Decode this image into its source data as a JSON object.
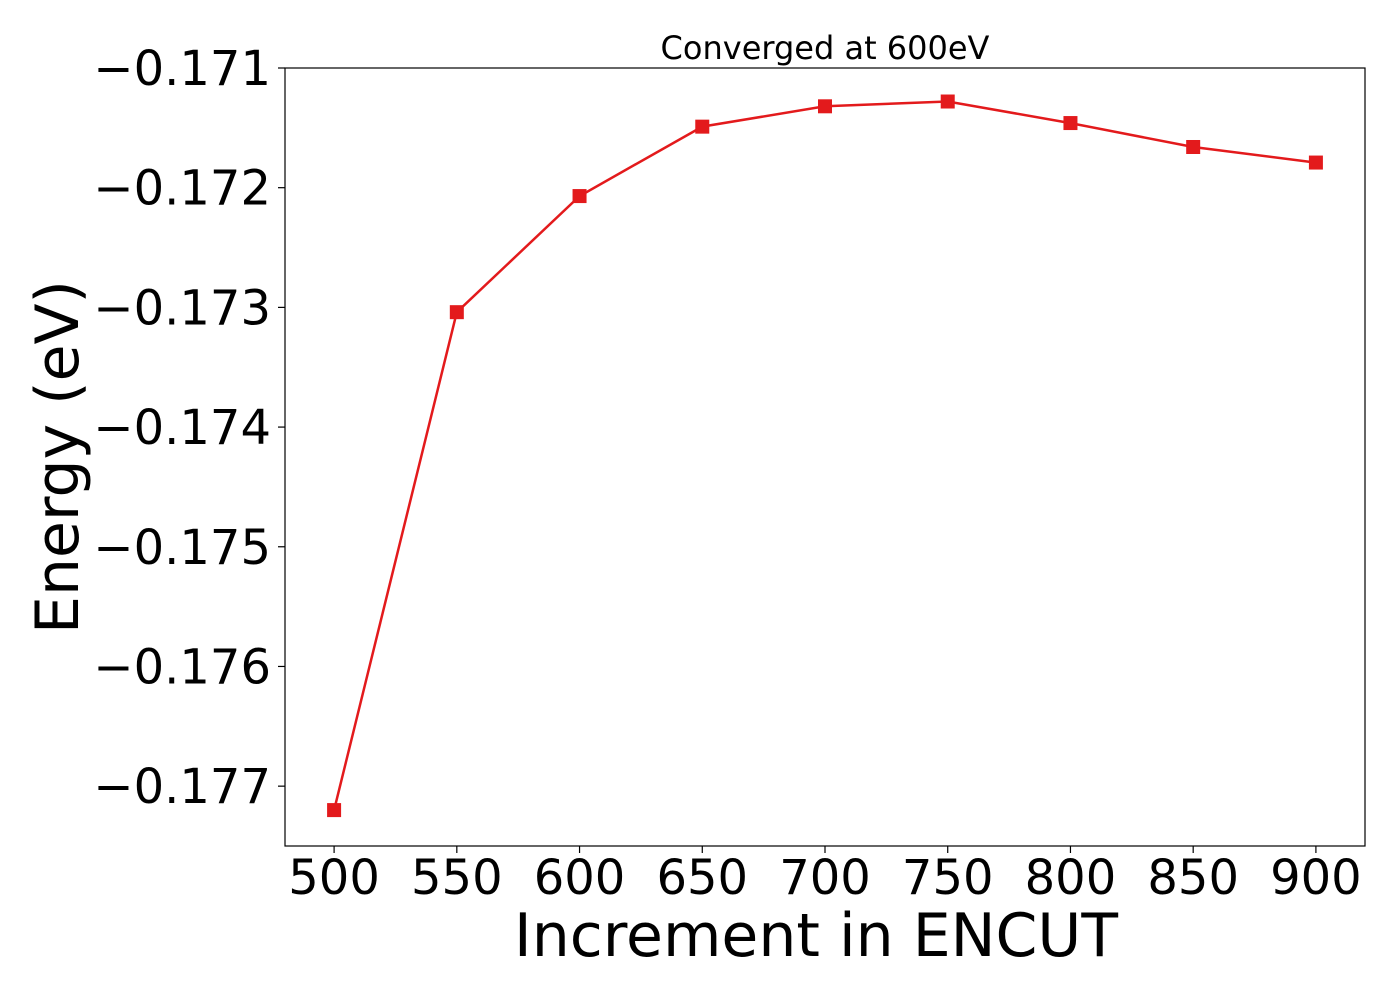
{
  "chart_data": {
    "type": "line",
    "title": "Converged at 600eV",
    "xlabel": "Increment in ENCUT",
    "ylabel": "Energy (eV)",
    "x": [
      500,
      550,
      600,
      650,
      700,
      750,
      800,
      850,
      900
    ],
    "series": [
      {
        "values": [
          -0.1772,
          -0.17304,
          -0.17207,
          -0.17149,
          -0.17132,
          -0.17128,
          -0.17146,
          -0.17166,
          -0.17179
        ],
        "color": "#e31a1c",
        "marker": "square"
      }
    ],
    "xticks": [
      500,
      550,
      600,
      650,
      700,
      750,
      800,
      850,
      900
    ],
    "xtick_labels": [
      "500",
      "550",
      "600",
      "650",
      "700",
      "750",
      "800",
      "850",
      "900"
    ],
    "yticks": [
      -0.171,
      -0.172,
      -0.173,
      -0.174,
      -0.175,
      -0.176,
      -0.177
    ],
    "ytick_labels": [
      "−0.171",
      "−0.172",
      "−0.173",
      "−0.174",
      "−0.175",
      "−0.176",
      "−0.177"
    ],
    "xlim": [
      480,
      920
    ],
    "ylim": [
      -0.1775,
      -0.171
    ],
    "grid": false,
    "legend": false
  }
}
